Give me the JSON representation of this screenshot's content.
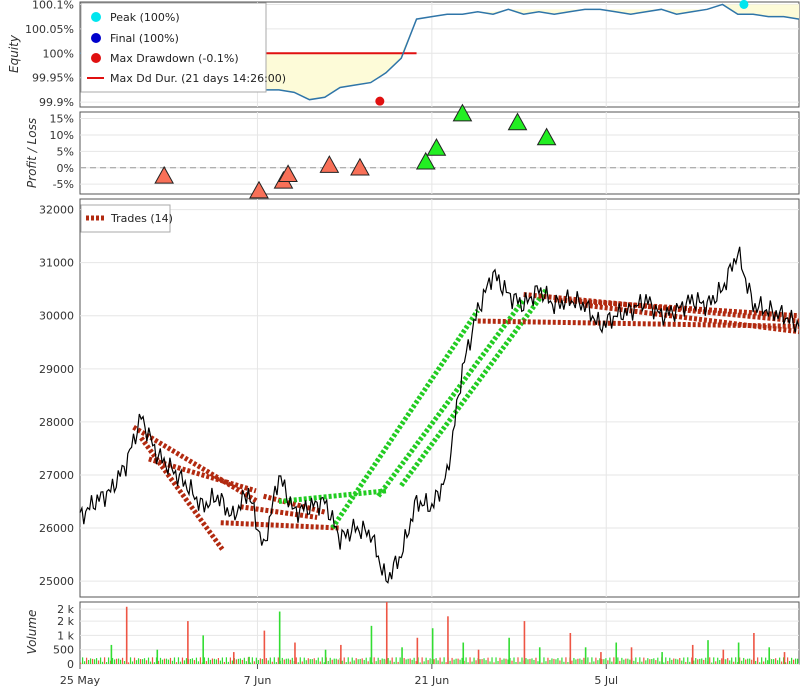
{
  "chart_data": [
    {
      "type": "line",
      "panel": "equity",
      "ylabel": "Equity",
      "ytick_labels": [
        "100.1%",
        "100.05%",
        "100%",
        "99.95%",
        "99.9%"
      ],
      "ylim": [
        99.89,
        100.105
      ],
      "x_dates": [
        "25 May",
        "7 Jun",
        "21 Jun",
        "5 Jul"
      ],
      "x": [
        0,
        1,
        2,
        3,
        4,
        5,
        6,
        7,
        8,
        9,
        10,
        11,
        12,
        13,
        14,
        15,
        16,
        17,
        18,
        19,
        20,
        21,
        22,
        23,
        24,
        25,
        26,
        27,
        28,
        29,
        30,
        31,
        32,
        33,
        34,
        35,
        36,
        37,
        38,
        39,
        40,
        41,
        42,
        43,
        44,
        45,
        46,
        47
      ],
      "values": [
        100,
        100,
        100,
        99.99,
        99.97,
        99.96,
        99.955,
        99.95,
        99.94,
        99.935,
        99.93,
        99.935,
        99.925,
        99.925,
        99.92,
        99.905,
        99.91,
        99.93,
        99.935,
        99.94,
        99.96,
        99.99,
        100.07,
        100.075,
        100.08,
        100.08,
        100.085,
        100.08,
        100.09,
        100.08,
        100.085,
        100.08,
        100.085,
        100.09,
        100.09,
        100.085,
        100.08,
        100.085,
        100.09,
        100.08,
        100.085,
        100.09,
        100.1,
        100.08,
        100.08,
        100.075,
        100.075,
        100.07
      ],
      "drawdown_level": 100.0,
      "legend": [
        {
          "label": "Peak (100%)",
          "color": "#00e5ee",
          "marker": "circle"
        },
        {
          "label": "Final (100%)",
          "color": "#0000cc",
          "marker": "circle"
        },
        {
          "label": "Max Drawdown (-0.1%)",
          "color": "#e01010",
          "marker": "circle"
        },
        {
          "label": "Max Dd Dur. (21 days 14:26:00)",
          "color": "#e01010",
          "marker": "line"
        }
      ],
      "peak": {
        "x": 43.4,
        "value": 100.1
      },
      "max_drawdown": {
        "x": 19.6,
        "value": 99.902
      },
      "colors": {
        "line": "#2f75a8",
        "fill": "#fdfbd8",
        "peak": "#00e5ee",
        "dd": "#e01010"
      }
    },
    {
      "type": "scatter",
      "panel": "profit_loss",
      "ylabel": "Profit / Loss",
      "ytick_labels": [
        "15%",
        "10%",
        "5%",
        "0%",
        "-5%"
      ],
      "ylim": [
        -8,
        17
      ],
      "points": [
        {
          "x": 5.5,
          "value": -2.5,
          "result": "loss"
        },
        {
          "x": 11.7,
          "value": -7.0,
          "result": "loss"
        },
        {
          "x": 13.3,
          "value": -4.0,
          "result": "loss"
        },
        {
          "x": 13.6,
          "value": -2.0,
          "result": "loss"
        },
        {
          "x": 16.3,
          "value": 0.8,
          "result": "loss"
        },
        {
          "x": 18.3,
          "value": 0.0,
          "result": "loss"
        },
        {
          "x": 22.6,
          "value": 1.8,
          "result": "profit"
        },
        {
          "x": 23.3,
          "value": 6.0,
          "result": "profit"
        },
        {
          "x": 25.0,
          "value": 16.5,
          "result": "profit"
        },
        {
          "x": 28.6,
          "value": 13.8,
          "result": "profit"
        },
        {
          "x": 30.5,
          "value": 9.2,
          "result": "profit"
        }
      ],
      "colors": {
        "profit": "#22ee22",
        "loss": "#f87058"
      }
    },
    {
      "type": "line",
      "panel": "price",
      "ytick_labels": [
        "32000",
        "31000",
        "30000",
        "29000",
        "28000",
        "27000",
        "26000",
        "25000"
      ],
      "ylim": [
        24700,
        32200
      ],
      "x": [
        0,
        1,
        2,
        3,
        4,
        5,
        6,
        7,
        8,
        9,
        10,
        11,
        12,
        13,
        14,
        15,
        16,
        17,
        18,
        19,
        20,
        21,
        22,
        23,
        24,
        25,
        26,
        27,
        28,
        29,
        30,
        31,
        32,
        33,
        34,
        35,
        36,
        37,
        38,
        39,
        40,
        41,
        42,
        43,
        44,
        45,
        46,
        47
      ],
      "values": [
        26200,
        26500,
        26700,
        27200,
        28100,
        27400,
        27100,
        26800,
        26400,
        26600,
        26200,
        26700,
        25600,
        27000,
        26300,
        26400,
        26500,
        25800,
        26000,
        25900,
        25000,
        25500,
        26500,
        26400,
        27000,
        29000,
        30100,
        30800,
        30400,
        30200,
        30500,
        30200,
        30300,
        30200,
        29800,
        30000,
        30100,
        30300,
        30000,
        30100,
        30300,
        30200,
        30500,
        31200,
        30200,
        30100,
        30000,
        29800
      ],
      "legend": [
        {
          "label": "Trades (14)",
          "color": "#b22a10",
          "marker": "dash"
        }
      ],
      "trades": [
        {
          "x0": 3.5,
          "y0": 27900,
          "x1": 11.6,
          "y1": 26500,
          "result": "loss"
        },
        {
          "x0": 4.0,
          "y0": 27700,
          "x1": 9.3,
          "y1": 25600,
          "result": "loss"
        },
        {
          "x0": 4.5,
          "y0": 27300,
          "x1": 11.5,
          "y1": 26700,
          "result": "loss"
        },
        {
          "x0": 9.2,
          "y0": 26100,
          "x1": 17.0,
          "y1": 26000,
          "result": "loss"
        },
        {
          "x0": 10.5,
          "y0": 26400,
          "x1": 15.5,
          "y1": 26200,
          "result": "loss"
        },
        {
          "x0": 12.0,
          "y0": 26600,
          "x1": 16.0,
          "y1": 26300,
          "result": "loss"
        },
        {
          "x0": 13.0,
          "y0": 26500,
          "x1": 20.0,
          "y1": 26700,
          "result": "profit"
        },
        {
          "x0": 16.5,
          "y0": 26000,
          "x1": 26.0,
          "y1": 30100,
          "result": "profit"
        },
        {
          "x0": 19.5,
          "y0": 26600,
          "x1": 29.0,
          "y1": 30300,
          "result": "profit"
        },
        {
          "x0": 21.0,
          "y0": 26800,
          "x1": 30.5,
          "y1": 30500,
          "result": "profit"
        },
        {
          "x0": 26.0,
          "y0": 29900,
          "x1": 47.0,
          "y1": 29800,
          "result": "loss"
        },
        {
          "x0": 29.0,
          "y0": 30400,
          "x1": 47.0,
          "y1": 29900,
          "result": "loss"
        },
        {
          "x0": 31.0,
          "y0": 30300,
          "x1": 47.0,
          "y1": 30000,
          "result": "loss"
        },
        {
          "x0": 33.0,
          "y0": 30200,
          "x1": 47.0,
          "y1": 29700,
          "result": "loss"
        }
      ],
      "colors": {
        "line": "#000000",
        "trade_profit": "#22cc22",
        "trade_loss": "#b22a10"
      }
    },
    {
      "type": "bar",
      "panel": "volume",
      "ylabel": "Volume",
      "ytick_labels": [
        "2 k",
        "2 k",
        "1 k",
        "500",
        "0"
      ],
      "ylim": [
        0,
        2600
      ],
      "x": [
        2,
        3,
        5,
        7,
        8,
        10,
        11,
        12,
        13,
        14,
        16,
        17,
        19,
        20,
        21,
        22,
        23,
        24,
        25,
        26,
        28,
        29,
        30,
        32,
        33,
        34,
        35,
        36,
        38,
        40,
        41,
        42,
        43,
        44,
        45,
        46
      ],
      "values": [
        800,
        2400,
        600,
        1800,
        1200,
        500,
        300,
        1400,
        2200,
        900,
        600,
        800,
        1600,
        2600,
        700,
        1100,
        1500,
        2000,
        900,
        600,
        1100,
        1800,
        700,
        1300,
        700,
        500,
        900,
        700,
        500,
        800,
        1000,
        600,
        900,
        1300,
        700,
        500
      ],
      "colors": {
        "up": "#33dd33",
        "down": "#ee5544"
      }
    }
  ]
}
